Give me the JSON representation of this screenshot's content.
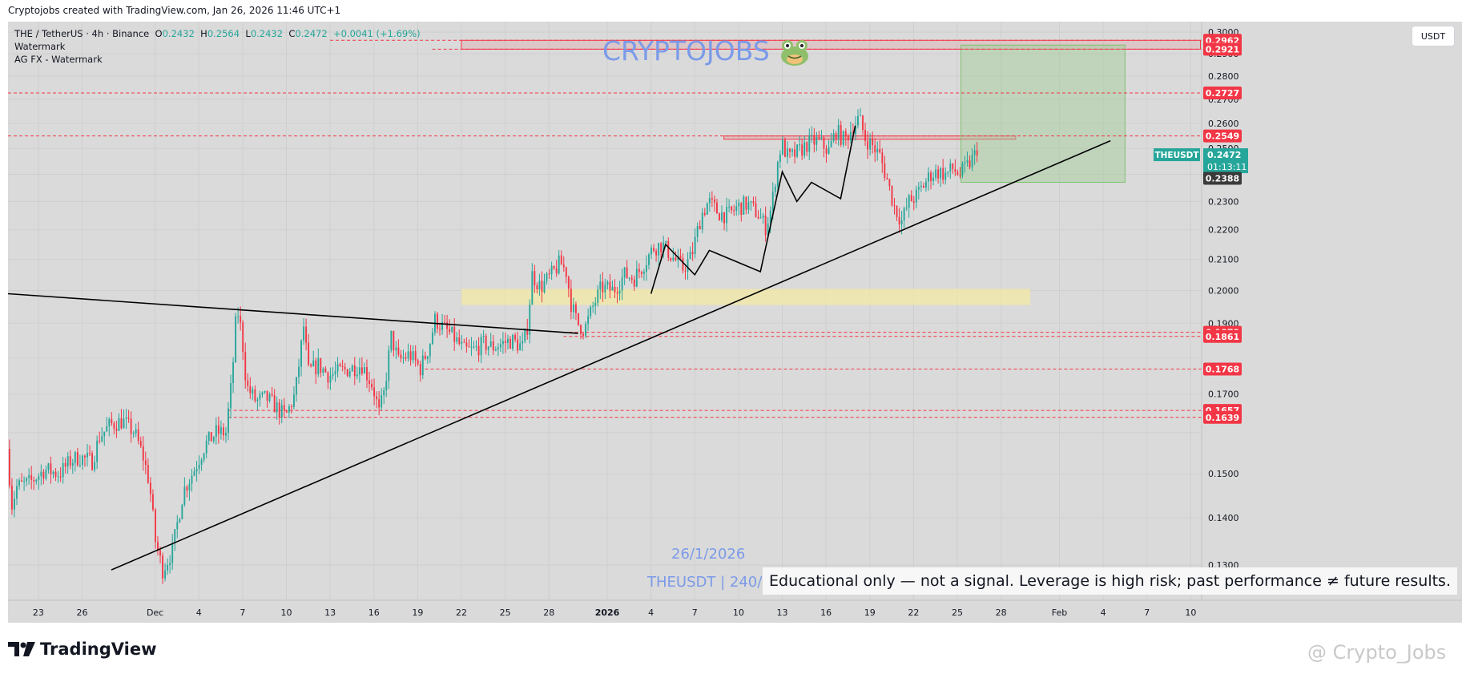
{
  "header": {
    "caption": "Cryptojobs created with TradingView.com, Jan 26, 2026 11:46 UTC+1"
  },
  "legend": {
    "symbol": "THE / TetherUS · 4h · Binance",
    "o_label": "O",
    "o": "0.2432",
    "h_label": "H",
    "h": "0.2564",
    "l_label": "L",
    "l": "0.2432",
    "c_label": "C",
    "c": "0.2472",
    "change": "+0.0041 (+1.69%)",
    "indicator1": "Watermark",
    "indicator2": "AG FX - Watermark"
  },
  "currency_button": "USDT",
  "brand_watermark": "CRYPTOJOBS",
  "watermark_date": "26/1/2026",
  "watermark_symbol": "THEUSDT | 240/",
  "disclaimer": "Educational only — not a signal. Leverage is high risk; past performance ≠ future results.",
  "footer": {
    "logo_text": "TradingView",
    "credit": "@ Crypto_Jobs"
  },
  "colors": {
    "up": "#26a69a",
    "down": "#f23645",
    "level": "#f23645",
    "trend": "#000000",
    "support_zone": "#f3e8a4",
    "target_zone": "#a8d5a0",
    "watermark": "#7b9ae8"
  },
  "chart_data": {
    "type": "candlestick",
    "symbol": "THEUSDT",
    "interval": "4h",
    "exchange": "Binance",
    "y_scale": "log",
    "ylim": [
      0.123,
      0.305
    ],
    "xlim": [
      "2025-11-20 22:00",
      "2026-02-10 18:00"
    ],
    "y_ticks": [
      0.13,
      0.14,
      0.15,
      0.16,
      0.17,
      0.18,
      0.19,
      0.2,
      0.21,
      0.22,
      0.23,
      0.24,
      0.25,
      0.26,
      0.27,
      0.28,
      0.29,
      0.3
    ],
    "y_tick_labels": [
      "0.1300",
      "0.1400",
      "0.1500",
      "",
      "0.1700",
      "",
      "0.1900",
      "0.2000",
      "0.2100",
      "0.2200",
      "0.2300",
      "",
      "0.2500",
      "0.2600",
      "0.2700",
      "0.2800",
      "0.2900",
      "0.3000"
    ],
    "x_ticks": [
      {
        "label": "23",
        "date": "2025-11-23"
      },
      {
        "label": "26",
        "date": "2025-11-26"
      },
      {
        "label": "Dec",
        "date": "2025-12-01"
      },
      {
        "label": "4",
        "date": "2025-12-04"
      },
      {
        "label": "7",
        "date": "2025-12-07"
      },
      {
        "label": "10",
        "date": "2025-12-10"
      },
      {
        "label": "13",
        "date": "2025-12-13"
      },
      {
        "label": "16",
        "date": "2025-12-16"
      },
      {
        "label": "19",
        "date": "2025-12-19"
      },
      {
        "label": "22",
        "date": "2025-12-22"
      },
      {
        "label": "25",
        "date": "2025-12-25"
      },
      {
        "label": "28",
        "date": "2025-12-28"
      },
      {
        "label": "2026",
        "date": "2026-01-01",
        "bold": true
      },
      {
        "label": "4",
        "date": "2026-01-04"
      },
      {
        "label": "7",
        "date": "2026-01-07"
      },
      {
        "label": "10",
        "date": "2026-01-10"
      },
      {
        "label": "13",
        "date": "2026-01-13"
      },
      {
        "label": "16",
        "date": "2026-01-16"
      },
      {
        "label": "19",
        "date": "2026-01-19"
      },
      {
        "label": "22",
        "date": "2026-01-22"
      },
      {
        "label": "25",
        "date": "2026-01-25"
      },
      {
        "label": "28",
        "date": "2026-01-28"
      },
      {
        "label": "Feb",
        "date": "2026-02-01"
      },
      {
        "label": "4",
        "date": "2026-02-04"
      },
      {
        "label": "7",
        "date": "2026-02-07"
      },
      {
        "label": "10",
        "date": "2026-02-10"
      }
    ],
    "price_path": [
      [
        "2025-11-20 22:00",
        0.156
      ],
      [
        "2025-11-21 06:00",
        0.143
      ],
      [
        "2025-11-21 14:00",
        0.147
      ],
      [
        "2025-11-22 12:00",
        0.148
      ],
      [
        "2025-11-23 12:00",
        0.151
      ],
      [
        "2025-11-24 12:00",
        0.15
      ],
      [
        "2025-11-25 06:00",
        0.153
      ],
      [
        "2025-11-25 20:00",
        0.154
      ],
      [
        "2025-11-26 18:00",
        0.153
      ],
      [
        "2025-11-27 06:00",
        0.159
      ],
      [
        "2025-11-28 00:00",
        0.162
      ],
      [
        "2025-11-28 20:00",
        0.163
      ],
      [
        "2025-11-29 16:00",
        0.16
      ],
      [
        "2025-11-30 06:00",
        0.154
      ],
      [
        "2025-11-30 16:00",
        0.148
      ],
      [
        "2025-12-01 02:00",
        0.135
      ],
      [
        "2025-12-01 14:00",
        0.129
      ],
      [
        "2025-12-02 06:00",
        0.133
      ],
      [
        "2025-12-03 00:00",
        0.146
      ],
      [
        "2025-12-03 18:00",
        0.151
      ],
      [
        "2025-12-04 12:00",
        0.157
      ],
      [
        "2025-12-05 06:00",
        0.16
      ],
      [
        "2025-12-05 22:00",
        0.16
      ],
      [
        "2025-12-06 08:00",
        0.174
      ],
      [
        "2025-12-06 16:00",
        0.195
      ],
      [
        "2025-12-07 00:00",
        0.187
      ],
      [
        "2025-12-07 08:00",
        0.172
      ],
      [
        "2025-12-08 00:00",
        0.168
      ],
      [
        "2025-12-08 16:00",
        0.169
      ],
      [
        "2025-12-09 06:00",
        0.167
      ],
      [
        "2025-12-10 00:00",
        0.164
      ],
      [
        "2025-12-10 16:00",
        0.17
      ],
      [
        "2025-12-11 06:00",
        0.189
      ],
      [
        "2025-12-11 14:00",
        0.176
      ],
      [
        "2025-12-12 06:00",
        0.178
      ],
      [
        "2025-12-13 00:00",
        0.175
      ],
      [
        "2025-12-13 16:00",
        0.176
      ],
      [
        "2025-12-14 12:00",
        0.177
      ],
      [
        "2025-12-15 06:00",
        0.178
      ],
      [
        "2025-12-16 00:00",
        0.172
      ],
      [
        "2025-12-16 10:00",
        0.165
      ],
      [
        "2025-12-16 18:00",
        0.17
      ],
      [
        "2025-12-17 06:00",
        0.186
      ],
      [
        "2025-12-17 18:00",
        0.179
      ],
      [
        "2025-12-18 12:00",
        0.181
      ],
      [
        "2025-12-19 06:00",
        0.177
      ],
      [
        "2025-12-19 20:00",
        0.183
      ],
      [
        "2025-12-20 06:00",
        0.191
      ],
      [
        "2025-12-20 18:00",
        0.189
      ],
      [
        "2025-12-21 12:00",
        0.186
      ],
      [
        "2025-12-22 06:00",
        0.182
      ],
      [
        "2025-12-22 20:00",
        0.182
      ],
      [
        "2025-12-23 14:00",
        0.184
      ],
      [
        "2025-12-24 06:00",
        0.183
      ],
      [
        "2025-12-24 20:00",
        0.184
      ],
      [
        "2025-12-25 12:00",
        0.185
      ],
      [
        "2025-12-26 06:00",
        0.183
      ],
      [
        "2025-12-26 14:00",
        0.189
      ],
      [
        "2025-12-26 22:00",
        0.205
      ],
      [
        "2025-12-27 12:00",
        0.201
      ],
      [
        "2025-12-28 06:00",
        0.205
      ],
      [
        "2025-12-28 20:00",
        0.209
      ],
      [
        "2025-12-29 06:00",
        0.206
      ],
      [
        "2025-12-29 14:00",
        0.196
      ],
      [
        "2025-12-30 00:00",
        0.19
      ],
      [
        "2025-12-30 12:00",
        0.188
      ],
      [
        "2025-12-31 02:00",
        0.195
      ],
      [
        "2025-12-31 16:00",
        0.201
      ],
      [
        "2026-01-01 12:00",
        0.2
      ],
      [
        "2026-01-02 06:00",
        0.205
      ],
      [
        "2026-01-02 22:00",
        0.204
      ],
      [
        "2026-01-03 12:00",
        0.208
      ],
      [
        "2026-01-04 06:00",
        0.214
      ],
      [
        "2026-01-04 20:00",
        0.215
      ],
      [
        "2026-01-05 12:00",
        0.211
      ],
      [
        "2026-01-06 06:00",
        0.207
      ],
      [
        "2026-01-06 20:00",
        0.211
      ],
      [
        "2026-01-07 12:00",
        0.225
      ],
      [
        "2026-01-08 00:00",
        0.23
      ],
      [
        "2026-01-08 16:00",
        0.226
      ],
      [
        "2026-01-09 08:00",
        0.225
      ],
      [
        "2026-01-10 00:00",
        0.228
      ],
      [
        "2026-01-10 16:00",
        0.229
      ],
      [
        "2026-01-11 08:00",
        0.226
      ],
      [
        "2026-01-11 22:00",
        0.221
      ],
      [
        "2026-01-12 08:00",
        0.228
      ],
      [
        "2026-01-12 16:00",
        0.242
      ],
      [
        "2026-01-13 00:00",
        0.252
      ],
      [
        "2026-01-13 12:00",
        0.246
      ],
      [
        "2026-01-14 06:00",
        0.249
      ],
      [
        "2026-01-14 20:00",
        0.252
      ],
      [
        "2026-01-15 12:00",
        0.253
      ],
      [
        "2026-01-16 06:00",
        0.249
      ],
      [
        "2026-01-16 18:00",
        0.257
      ],
      [
        "2026-01-17 08:00",
        0.253
      ],
      [
        "2026-01-17 22:00",
        0.259
      ],
      [
        "2026-01-18 08:00",
        0.262
      ],
      [
        "2026-01-18 18:00",
        0.254
      ],
      [
        "2026-01-19 06:00",
        0.251
      ],
      [
        "2026-01-19 18:00",
        0.247
      ],
      [
        "2026-01-20 06:00",
        0.238
      ],
      [
        "2026-01-20 18:00",
        0.228
      ],
      [
        "2026-01-21 06:00",
        0.223
      ],
      [
        "2026-01-21 18:00",
        0.23
      ],
      [
        "2026-01-22 06:00",
        0.232
      ],
      [
        "2026-01-22 18:00",
        0.236
      ],
      [
        "2026-01-23 06:00",
        0.24
      ],
      [
        "2026-01-23 18:00",
        0.241
      ],
      [
        "2026-01-24 06:00",
        0.24
      ],
      [
        "2026-01-24 18:00",
        0.242
      ],
      [
        "2026-01-25 06:00",
        0.24
      ],
      [
        "2026-01-25 18:00",
        0.243
      ],
      [
        "2026-01-26 06:00",
        0.2472
      ]
    ],
    "horizontal_levels": [
      {
        "price": 0.2962,
        "label": "0.2962"
      },
      {
        "price": 0.2921,
        "label": "0.2921"
      },
      {
        "price": 0.2727,
        "label": "0.2727"
      },
      {
        "price": 0.2549,
        "label": "0.2549"
      },
      {
        "price": 0.1873,
        "label": "0.1873"
      },
      {
        "price": 0.1861,
        "label": "0.1861"
      },
      {
        "price": 0.1768,
        "label": "0.1768"
      },
      {
        "price": 0.1657,
        "label": "0.1657"
      },
      {
        "price": 0.1639,
        "label": "0.1639"
      }
    ],
    "current_price": {
      "symbol": "THEUSDT",
      "price": "0.2472",
      "countdown": "01:13:11"
    },
    "extra_price_label": "0.2388",
    "zones": [
      {
        "name": "resistance-zone-top",
        "from": "2025-12-22 00:00",
        "to": "2026-02-10 16:00",
        "top": 0.2962,
        "bottom": 0.2921
      },
      {
        "name": "resistance-zone-mid",
        "from": "2026-01-09 00:00",
        "to": "2026-01-29 00:00",
        "top": 0.2549,
        "bottom": 0.2536
      },
      {
        "name": "support-zone",
        "from": "2025-12-22 00:00",
        "to": "2026-01-30 00:00",
        "top": 0.2005,
        "bottom": 0.1955
      },
      {
        "name": "target-zone",
        "from": "2026-01-25 06:00",
        "to": "2026-02-05 12:00",
        "top": 0.294,
        "bottom": 0.237
      }
    ],
    "trendlines": [
      {
        "name": "descending-trendline",
        "points": [
          [
            "2025-11-20 22:00",
            0.199
          ],
          [
            "2025-12-30 00:00",
            0.187
          ]
        ]
      },
      {
        "name": "ascending-trendline",
        "points": [
          [
            "2025-11-28 00:00",
            0.129
          ],
          [
            "2026-02-04 12:00",
            0.253
          ]
        ]
      }
    ],
    "projection_path": [
      [
        "2026-01-04 00:00",
        0.199
      ],
      [
        "2026-01-05 00:00",
        0.215
      ],
      [
        "2026-01-07 00:00",
        0.205
      ],
      [
        "2026-01-08 00:00",
        0.213
      ],
      [
        "2026-01-11 12:00",
        0.206
      ],
      [
        "2026-01-13 00:00",
        0.241
      ],
      [
        "2026-01-14 00:00",
        0.23
      ],
      [
        "2026-01-15 00:00",
        0.237
      ],
      [
        "2026-01-17 00:00",
        0.231
      ],
      [
        "2026-01-18 00:00",
        0.259
      ]
    ]
  }
}
